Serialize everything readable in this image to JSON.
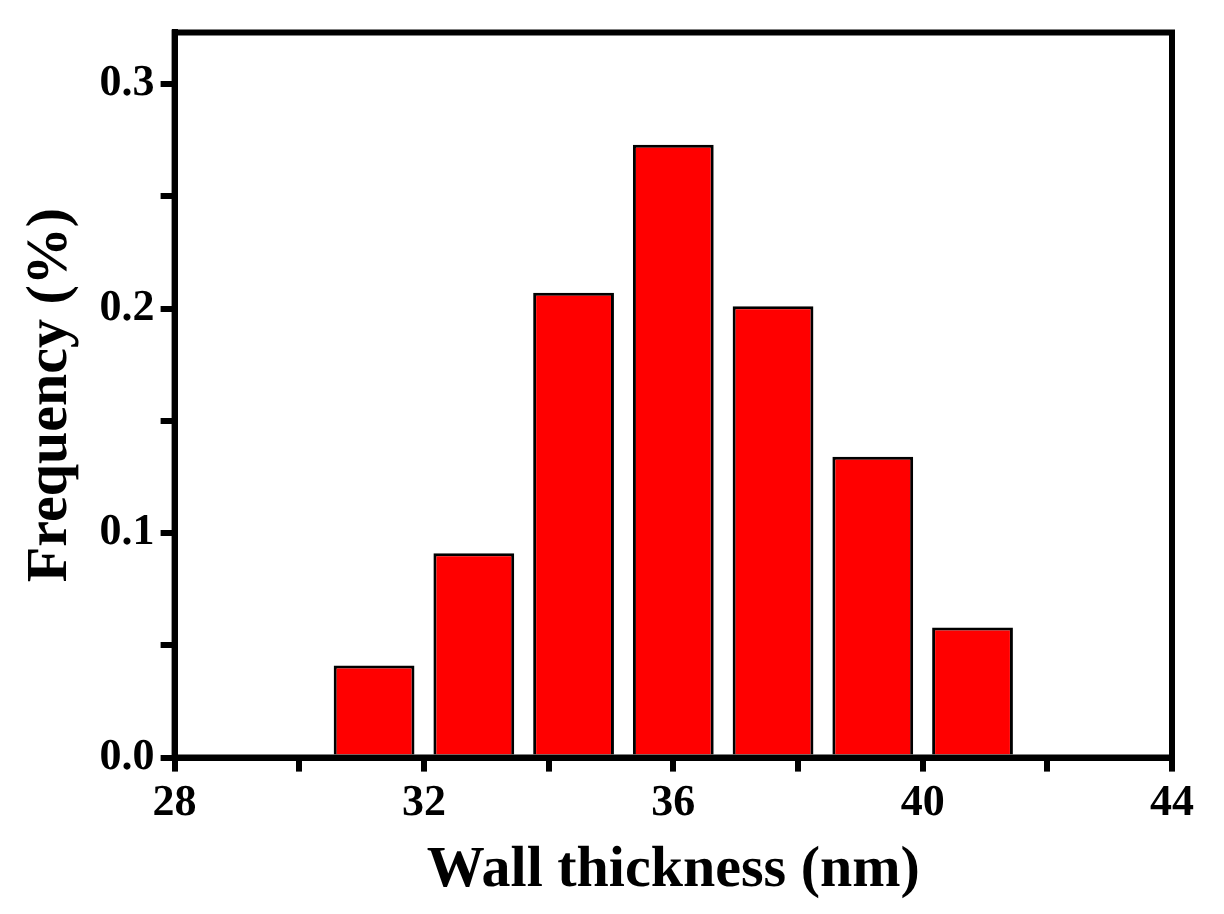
{
  "chart_data": {
    "type": "bar",
    "xlabel": "Wall thickness (nm)",
    "ylabel": "Frequency (%)",
    "x": [
      31.2,
      32.8,
      34.4,
      36.0,
      37.6,
      39.2,
      40.8
    ],
    "values": [
      0.041,
      0.091,
      0.207,
      0.273,
      0.201,
      0.134,
      0.058
    ],
    "color": "#ff0000",
    "xlim": [
      28,
      44
    ],
    "xticks": [
      28,
      {
        "value": 30,
        "label": null
      },
      32,
      {
        "value": 34,
        "label": null
      },
      36,
      {
        "value": 38,
        "label": null
      },
      40,
      {
        "value": 42,
        "label": null
      },
      44
    ],
    "ylim": [
      0,
      0.323
    ],
    "yticks": [
      {
        "value": 0,
        "label": "0.0"
      },
      {
        "value": 0.05,
        "label": null
      },
      0.1,
      {
        "value": 0.15,
        "label": null
      },
      0.2,
      {
        "value": 0.25,
        "label": null
      },
      0.3
    ]
  }
}
